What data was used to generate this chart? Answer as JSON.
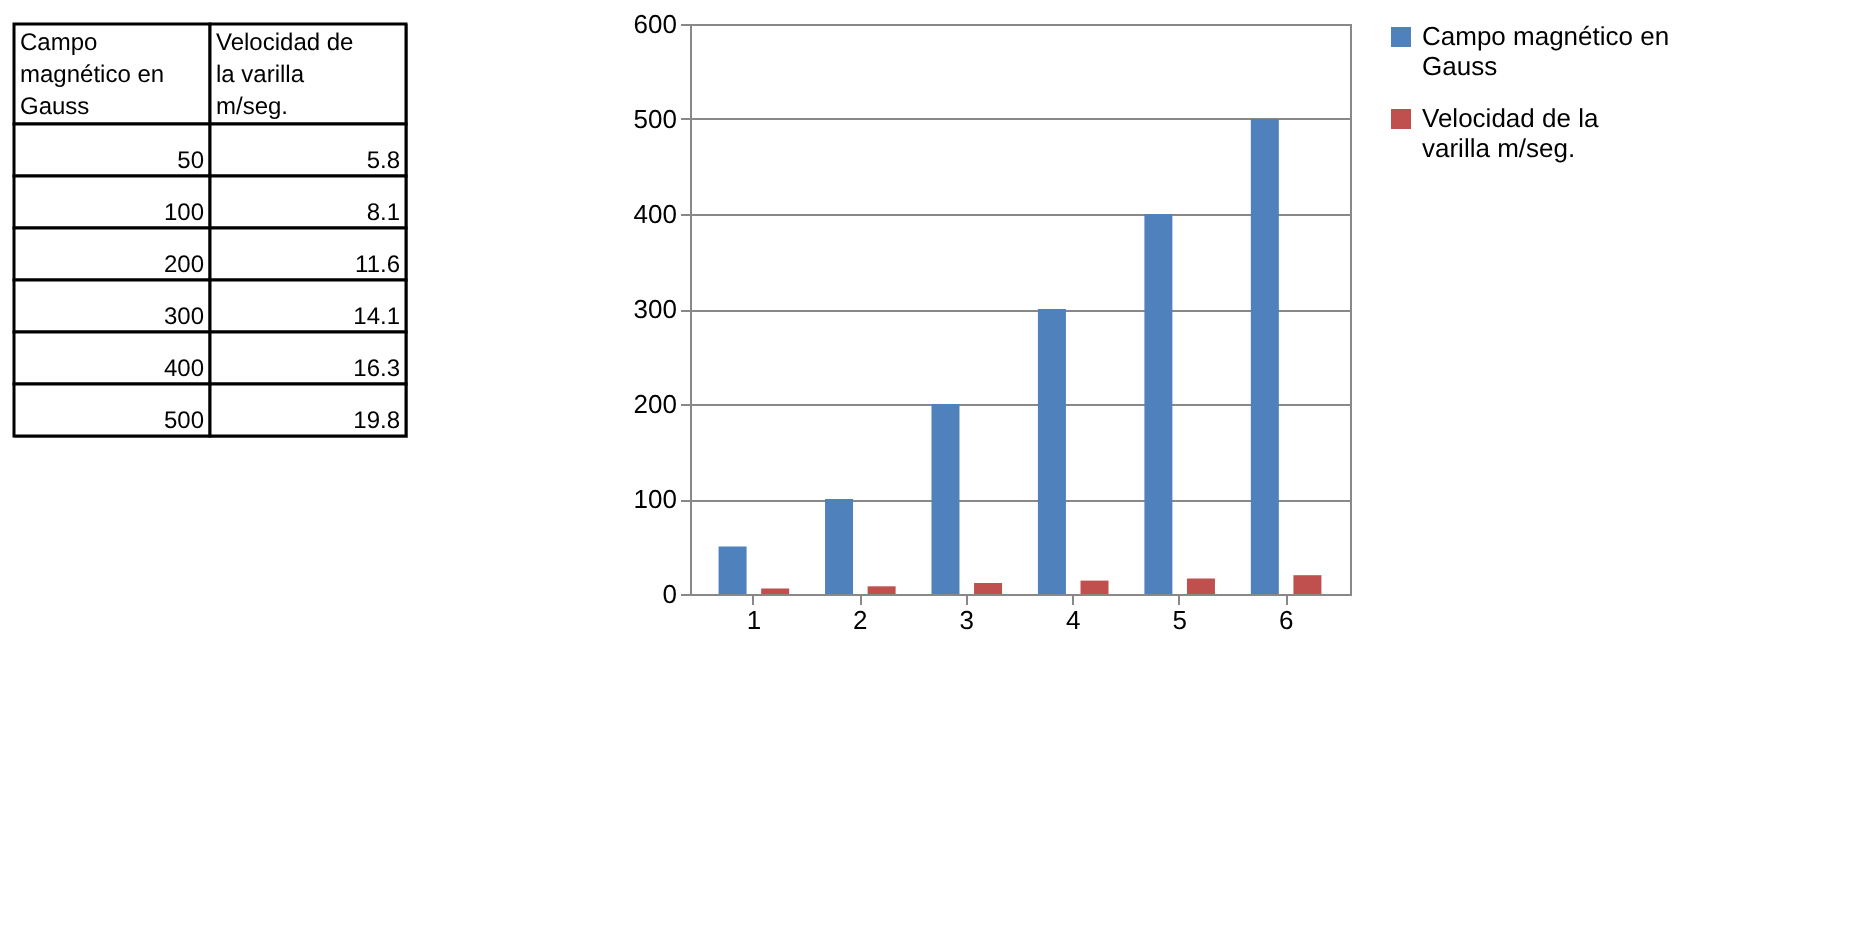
{
  "chart_data": [
    {
      "type": "other",
      "categories": [
        "Campo magnético en Gauss",
        "Velocidad de la varilla m/seg."
      ],
      "annotations": [
        "50",
        "5.8",
        "100",
        "8.1",
        "200",
        "11.6",
        "300",
        "14.1",
        "400",
        "16.3",
        "500",
        "19.8"
      ]
    },
    {
      "type": "bar",
      "categories": [
        "1",
        "2",
        "3",
        "4",
        "5",
        "6"
      ],
      "series": [
        {
          "name": "Campo magnético en Gauss",
          "color": "#4f81bd",
          "values": [
            50,
            100,
            200,
            300,
            400,
            500
          ]
        },
        {
          "name": "Velocidad de la varilla m/seg.",
          "color": "#c0504d",
          "values": [
            5.8,
            8.1,
            11.6,
            14.1,
            16.3,
            19.8
          ]
        }
      ],
      "ylim": [
        0,
        600
      ],
      "yticks": [
        0,
        100,
        200,
        300,
        400,
        500,
        600
      ],
      "grid": "y",
      "legend": "right"
    }
  ]
}
